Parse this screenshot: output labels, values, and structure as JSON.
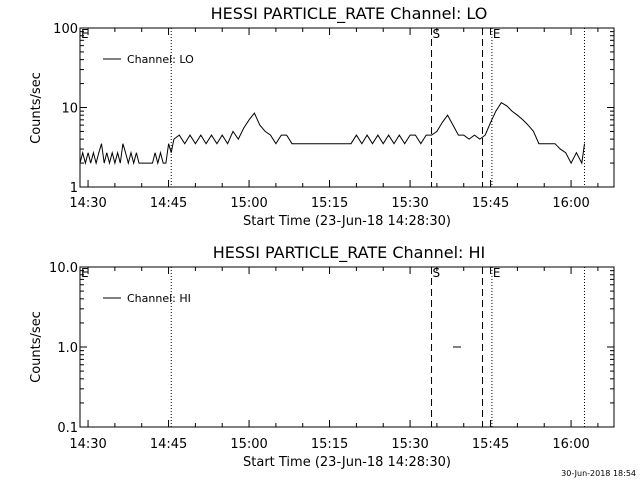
{
  "footer": {
    "timestamp": "30-Jun-2018 18:54"
  },
  "chart_data": [
    {
      "type": "line",
      "title": "HESSI PARTICLE_RATE Channel: LO",
      "xlabel": "Start Time (23-Jun-18 14:28:30)",
      "ylabel": "Counts/sec",
      "yscale": "log",
      "ylim": [
        1,
        100
      ],
      "yticks": [
        "1",
        "10",
        "100"
      ],
      "xlim": [
        "14:28:30",
        "16:08:00"
      ],
      "xticks": [
        "14:30",
        "14:45",
        "15:00",
        "15:15",
        "15:30",
        "15:45",
        "16:00"
      ],
      "legend": {
        "placement": "top-left",
        "entries": [
          "Channel: LO"
        ]
      },
      "markers": [
        {
          "time": "14:45:30",
          "style": "dotted",
          "label": ""
        },
        {
          "time": "15:34:00",
          "style": "dashed",
          "label": "S"
        },
        {
          "time": "15:43:30",
          "style": "dashed",
          "label": ""
        },
        {
          "time": "15:45:15",
          "style": "dotted",
          "label": "E"
        },
        {
          "time": "16:02:30",
          "style": "dotted",
          "label": ""
        }
      ],
      "edge_labels": [
        "E"
      ],
      "series": [
        {
          "name": "Channel: LO",
          "x": [
            "14:28:30",
            "14:29:00",
            "14:29:30",
            "14:30:00",
            "14:30:30",
            "14:31:00",
            "14:31:30",
            "14:32:00",
            "14:32:30",
            "14:33:00",
            "14:33:30",
            "14:34:00",
            "14:34:30",
            "14:35:00",
            "14:35:30",
            "14:36:00",
            "14:36:30",
            "14:37:00",
            "14:37:30",
            "14:38:00",
            "14:38:30",
            "14:39:00",
            "14:39:30",
            "14:40:00",
            "14:40:30",
            "14:41:00",
            "14:41:30",
            "14:42:00",
            "14:42:30",
            "14:43:00",
            "14:43:30",
            "14:44:00",
            "14:44:30",
            "14:45:00",
            "14:45:30",
            "14:46:00",
            "14:47:00",
            "14:48:00",
            "14:49:00",
            "14:50:00",
            "14:51:00",
            "14:52:00",
            "14:53:00",
            "14:54:00",
            "14:55:00",
            "14:56:00",
            "14:57:00",
            "14:58:00",
            "14:59:00",
            "15:00:00",
            "15:01:00",
            "15:02:00",
            "15:03:00",
            "15:04:00",
            "15:05:00",
            "15:06:00",
            "15:07:00",
            "15:08:00",
            "15:10:00",
            "15:12:00",
            "15:14:00",
            "15:16:00",
            "15:18:00",
            "15:19:00",
            "15:20:00",
            "15:21:00",
            "15:22:00",
            "15:23:00",
            "15:24:00",
            "15:25:00",
            "15:26:00",
            "15:27:00",
            "15:28:00",
            "15:29:00",
            "15:30:00",
            "15:31:00",
            "15:32:00",
            "15:33:00",
            "15:34:00",
            "15:35:00",
            "15:36:00",
            "15:37:00",
            "15:38:00",
            "15:39:00",
            "15:40:00",
            "15:41:00",
            "15:42:00",
            "15:43:00",
            "15:44:00",
            "15:45:00",
            "15:46:00",
            "15:47:00",
            "15:48:00",
            "15:49:00",
            "15:50:00",
            "15:51:00",
            "15:52:00",
            "15:53:00",
            "15:54:00",
            "15:55:00",
            "15:56:00",
            "15:57:00",
            "15:58:00",
            "15:59:00",
            "16:00:00",
            "16:01:00",
            "16:02:00",
            "16:02:30"
          ],
          "values": [
            2.0,
            2.7,
            2.0,
            2.7,
            2.0,
            2.7,
            2.0,
            2.7,
            3.5,
            2.0,
            2.7,
            2.0,
            2.7,
            2.0,
            2.7,
            2.0,
            3.5,
            2.7,
            2.0,
            2.7,
            2.0,
            2.7,
            2.0,
            2.0,
            2.0,
            2.0,
            2.0,
            2.0,
            2.7,
            2.0,
            2.7,
            2.0,
            2.0,
            3.5,
            2.7,
            4.0,
            4.5,
            3.5,
            4.5,
            3.5,
            4.5,
            3.5,
            4.5,
            3.5,
            4.5,
            3.5,
            5.0,
            4.0,
            5.5,
            7.0,
            8.5,
            6.0,
            5.0,
            4.5,
            3.5,
            4.5,
            4.5,
            3.5,
            3.5,
            3.5,
            3.5,
            3.5,
            3.5,
            3.5,
            4.5,
            3.5,
            4.5,
            3.5,
            4.5,
            3.5,
            4.5,
            3.5,
            4.5,
            3.5,
            4.5,
            4.5,
            3.5,
            4.5,
            4.5,
            5.0,
            6.5,
            8.0,
            6.0,
            4.5,
            4.5,
            4.0,
            4.5,
            4.0,
            4.5,
            6.5,
            9.0,
            11.5,
            10.5,
            9.0,
            8.0,
            7.0,
            6.0,
            5.0,
            3.5,
            3.5,
            3.5,
            3.5,
            3.0,
            2.7,
            2.0,
            2.7,
            2.0,
            3.5
          ]
        }
      ]
    },
    {
      "type": "line",
      "title": "HESSI PARTICLE_RATE Channel: HI",
      "xlabel": "Start Time (23-Jun-18 14:28:30)",
      "ylabel": "Counts/sec",
      "yscale": "log",
      "ylim": [
        0.1,
        10
      ],
      "yticks": [
        "0.1",
        "1.0",
        "10.0"
      ],
      "xlim": [
        "14:28:30",
        "16:08:00"
      ],
      "xticks": [
        "14:30",
        "14:45",
        "15:00",
        "15:15",
        "15:30",
        "15:45",
        "16:00"
      ],
      "legend": {
        "placement": "top-left",
        "entries": [
          "Channel: HI"
        ]
      },
      "markers": [
        {
          "time": "14:45:30",
          "style": "dotted",
          "label": ""
        },
        {
          "time": "15:34:00",
          "style": "dashed",
          "label": "S"
        },
        {
          "time": "15:43:30",
          "style": "dashed",
          "label": ""
        },
        {
          "time": "15:45:15",
          "style": "dotted",
          "label": "E"
        },
        {
          "time": "16:02:30",
          "style": "dotted",
          "label": ""
        }
      ],
      "edge_labels": [
        "E"
      ],
      "series": [
        {
          "name": "Channel: HI",
          "x": [
            "15:38:00",
            "15:39:30"
          ],
          "values": [
            1.0,
            1.0
          ]
        }
      ]
    }
  ]
}
